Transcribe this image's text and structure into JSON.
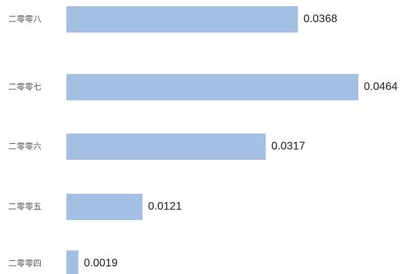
{
  "chart_data": {
    "type": "bar",
    "orientation": "horizontal",
    "categories": [
      "二零零八",
      "二零零七",
      "二零零六",
      "二零零五",
      "二零零四"
    ],
    "values": [
      0.0368,
      0.0464,
      0.0317,
      0.0121,
      0.0019
    ],
    "value_labels": [
      "0.0368",
      "0.0464",
      "0.0317",
      "0.0121",
      "0.0019"
    ],
    "xlim": [
      0,
      0.0464
    ],
    "grid": false,
    "colors": {
      "bar": "#a3bfe3"
    }
  }
}
